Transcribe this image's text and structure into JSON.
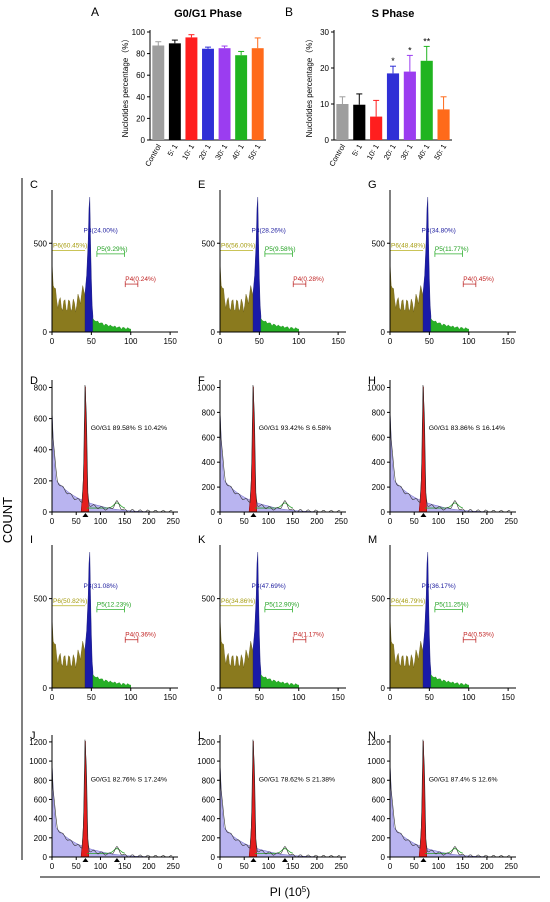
{
  "figure": {
    "y_title": "COUNT",
    "x_title_main": "PI (10",
    "x_title_exp": "5",
    "x_title_end": ")"
  },
  "chart_data": [
    {
      "id": "A",
      "type": "bar",
      "letter": "A",
      "title": "G0/G1 Phase",
      "ylabel": "Nuclotides percentage（%）",
      "categories": [
        "Control",
        "5∶ 1",
        "10∶ 1",
        "20∶ 1",
        "30∶ 1",
        "40∶ 1",
        "50∶ 1"
      ],
      "values": [
        87.5,
        89.5,
        95.0,
        84.5,
        85.0,
        78.5,
        85.0
      ],
      "errors": [
        3.5,
        3.0,
        2.5,
        1.5,
        2.0,
        3.5,
        9.5
      ],
      "colors": [
        "#9e9e9e",
        "#000000",
        "#ff1e1e",
        "#2f2fd6",
        "#9b3df0",
        "#20b420",
        "#ff6a1a"
      ],
      "ylim": [
        0,
        100
      ],
      "yticks": [
        "0",
        "20",
        "40",
        "60",
        "80",
        "100"
      ],
      "significance": [
        "",
        "",
        "",
        "",
        "",
        "",
        ""
      ]
    },
    {
      "id": "B",
      "type": "bar",
      "letter": "B",
      "title": "S Phase",
      "ylabel": "Nuclotides percentage（%）",
      "categories": [
        "Control",
        "5∶ 1",
        "10∶ 1",
        "20∶ 1",
        "30∶ 1",
        "40∶ 1",
        "50∶ 1"
      ],
      "values": [
        10.0,
        9.8,
        6.5,
        18.5,
        19.0,
        22.0,
        8.5
      ],
      "errors": [
        2.0,
        3.0,
        4.5,
        2.0,
        4.5,
        4.0,
        3.5
      ],
      "colors": [
        "#9e9e9e",
        "#000000",
        "#ff1e1e",
        "#2f2fd6",
        "#9b3df0",
        "#20b420",
        "#ff6a1a"
      ],
      "ylim": [
        0,
        30
      ],
      "yticks": [
        "0",
        "10",
        "20",
        "30"
      ],
      "significance": [
        "",
        "",
        "",
        "*",
        "*",
        "**",
        ""
      ]
    }
  ],
  "gate_panels": [
    {
      "letter": "C",
      "p6": "P6(60.45%)",
      "p3": "P3(24.00%)",
      "p5": "P5(9.29%)",
      "p4": "P4(0.24%)",
      "yticks": [
        "0",
        "500"
      ],
      "xticks": [
        "0",
        "50",
        "100",
        "150"
      ]
    },
    {
      "letter": "E",
      "p6": "P6(56.00%)",
      "p3": "P3(28.26%)",
      "p5": "P5(9.58%)",
      "p4": "P4(0.28%)",
      "yticks": [
        "0",
        "500"
      ],
      "xticks": [
        "0",
        "50",
        "100",
        "150"
      ]
    },
    {
      "letter": "G",
      "p6": "P6(48.48%)",
      "p3": "P3(34.80%)",
      "p5": "P5(11.77%)",
      "p4": "P4(0.45%)",
      "yticks": [
        "0",
        "500"
      ],
      "xticks": [
        "0",
        "50",
        "100",
        "150"
      ]
    },
    {
      "letter": "I",
      "p6": "P6(50.82%)",
      "p3": "P3(31.08%)",
      "p5": "P5(12.23%)",
      "p4": "P4(0.36%)",
      "yticks": [
        "0",
        "500"
      ],
      "xticks": [
        "0",
        "50",
        "100",
        "150"
      ]
    },
    {
      "letter": "K",
      "p6": "P6(34.86%)",
      "p3": "P3(47.69%)",
      "p5": "P5(12.90%)",
      "p4": "P4(1.17%)",
      "yticks": [
        "0",
        "500"
      ],
      "xticks": [
        "0",
        "50",
        "100",
        "150"
      ]
    },
    {
      "letter": "M",
      "p6": "P6(46.79%)",
      "p3": "P3(36.17%)",
      "p5": "P5(11.25%)",
      "p4": "P4(0.53%)",
      "yticks": [
        "0",
        "500"
      ],
      "xticks": [
        "0",
        "50",
        "100",
        "150"
      ]
    }
  ],
  "fit_panels": [
    {
      "letter": "D",
      "label": "G0/G1 89.58%  S 10.42%",
      "yticks": [
        "0",
        "200",
        "400",
        "600",
        "800"
      ],
      "xticks": [
        "0",
        "50",
        "100",
        "150",
        "200",
        "250"
      ],
      "second_marker": false
    },
    {
      "letter": "F",
      "label": "G0/G1 93.42%  S 6.58%",
      "yticks": [
        "0",
        "200",
        "400",
        "600",
        "800",
        "1000"
      ],
      "xticks": [
        "0",
        "50",
        "100",
        "150",
        "200",
        "250"
      ],
      "second_marker": false
    },
    {
      "letter": "H",
      "label": "G0/G1 83.86%  S 16.14%",
      "yticks": [
        "0",
        "200",
        "400",
        "600",
        "800",
        "1000"
      ],
      "xticks": [
        "0",
        "50",
        "100",
        "150",
        "200",
        "250"
      ],
      "second_marker": false
    },
    {
      "letter": "J",
      "label": "G0/G1 82.76%  S 17.24%",
      "yticks": [
        "0",
        "200",
        "400",
        "600",
        "800",
        "1000",
        "1200"
      ],
      "xticks": [
        "0",
        "50",
        "100",
        "150",
        "200",
        "250"
      ],
      "second_marker": true
    },
    {
      "letter": "L",
      "label": "G0/G1 78.62%  S 21.38%",
      "yticks": [
        "0",
        "200",
        "400",
        "600",
        "800",
        "1000",
        "1200"
      ],
      "xticks": [
        "0",
        "50",
        "100",
        "150",
        "200",
        "250"
      ],
      "second_marker": true
    },
    {
      "letter": "N",
      "label": "G0/G1 87.4%  S 12.6%",
      "yticks": [
        "0",
        "200",
        "400",
        "600",
        "800",
        "1000",
        "1200"
      ],
      "xticks": [
        "0",
        "50",
        "100",
        "150",
        "200",
        "250"
      ],
      "second_marker": false
    }
  ]
}
